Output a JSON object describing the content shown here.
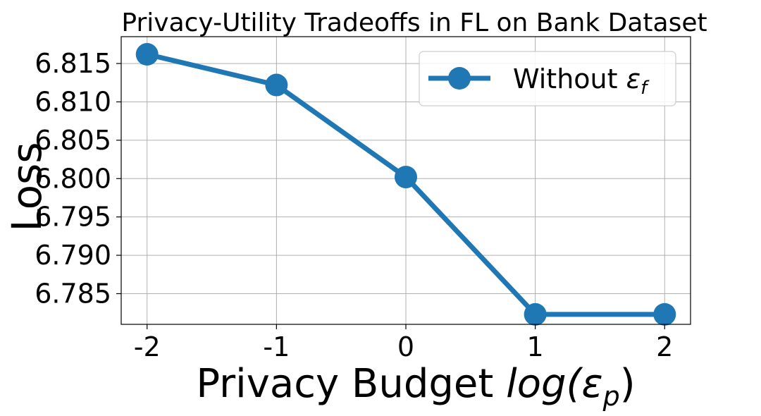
{
  "chart_data": {
    "type": "line",
    "title": "Privacy-Utility Tradeoffs in FL on Bank Dataset",
    "xlabel_prefix": "Privacy Budget ",
    "xlabel_math": "log(ε",
    "xlabel_sub": "p",
    "xlabel_close": ")",
    "ylabel": "Loss",
    "x_tick_labels": [
      "-2",
      "-1",
      "0",
      "1",
      "2"
    ],
    "y_tick_labels": [
      "6.785",
      "6.790",
      "6.795",
      "6.800",
      "6.805",
      "6.810",
      "6.815"
    ],
    "y_ticks": [
      6.785,
      6.79,
      6.795,
      6.8,
      6.805,
      6.81,
      6.815
    ],
    "x_ticks": [
      -2,
      -1,
      0,
      1,
      2
    ],
    "xlim": [
      -2.2,
      2.2
    ],
    "ylim": [
      6.781,
      6.8185
    ],
    "grid": true,
    "legend_placement": "top-right",
    "series": [
      {
        "name_main": "Without ",
        "name_math": "ε",
        "name_sub": "f",
        "color": "#1f77b4",
        "x": [
          -2,
          -1,
          0,
          1,
          2
        ],
        "y": [
          6.8162,
          6.8122,
          6.8002,
          6.7823,
          6.7823
        ]
      }
    ]
  }
}
